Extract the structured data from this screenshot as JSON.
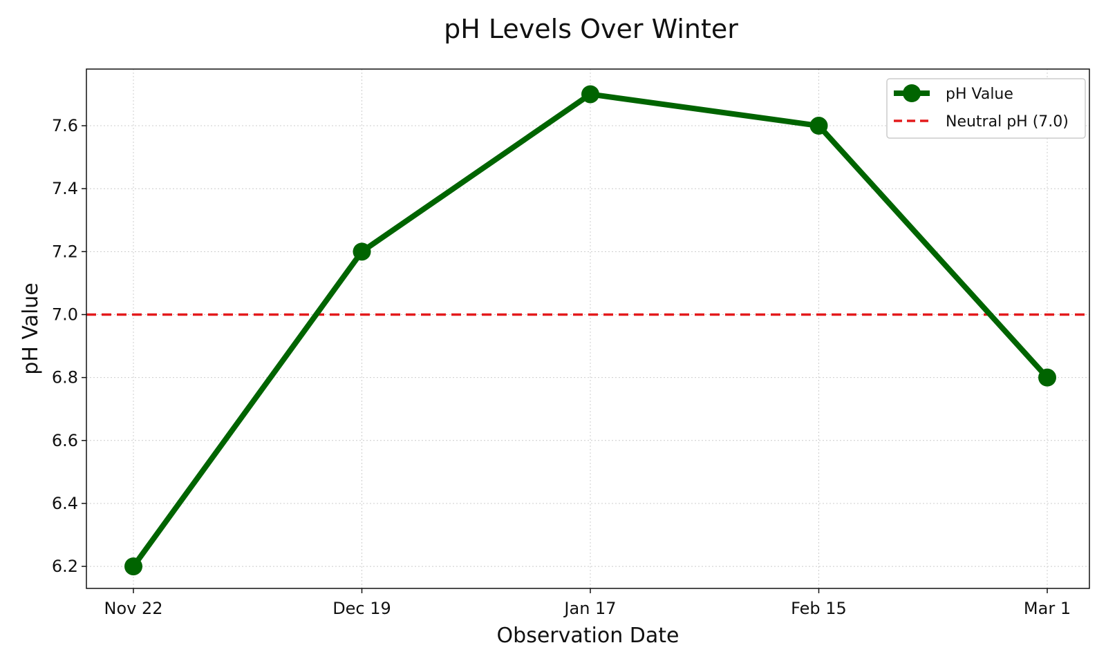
{
  "chart_data": {
    "type": "line",
    "title": "pH Levels Over Winter",
    "xlabel": "Observation Date",
    "ylabel": "pH Value",
    "categories": [
      "Nov 22",
      "Dec 19",
      "Jan 17",
      "Feb 15",
      "Mar 1"
    ],
    "series": [
      {
        "name": "pH Value",
        "values": [
          6.2,
          7.2,
          7.7,
          7.6,
          6.8
        ],
        "color": "#006400"
      }
    ],
    "reference_line": {
      "name": "Neutral pH (7.0)",
      "value": 7.0,
      "color": "#e31a1c"
    },
    "ylim": [
      6.13,
      7.78
    ],
    "yticks": [
      "6.2",
      "6.4",
      "6.6",
      "6.8",
      "7.0",
      "7.2",
      "7.4",
      "7.6"
    ],
    "grid": true,
    "legend_position": "top-right"
  }
}
